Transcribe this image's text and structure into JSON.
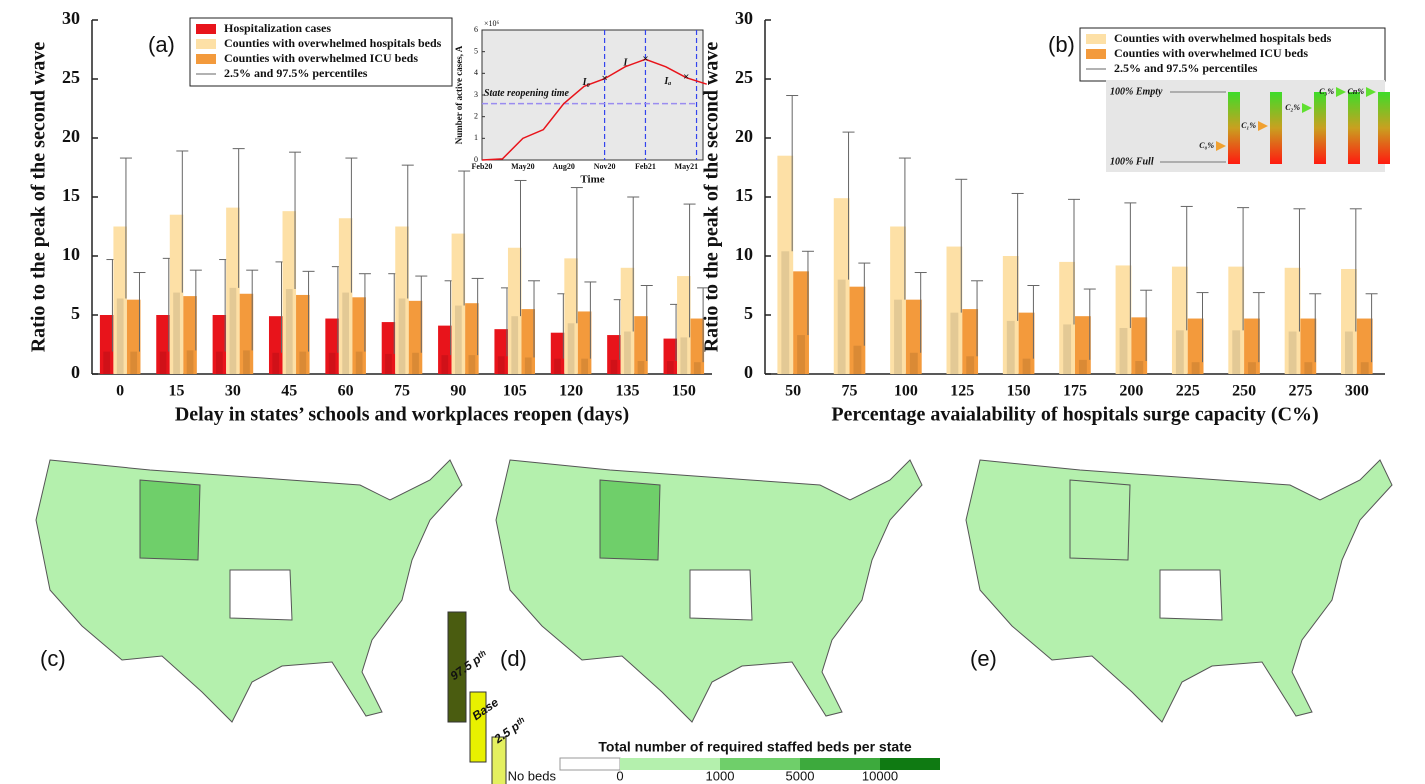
{
  "chart_data": [
    {
      "type": "bar",
      "panel_label": "(a)",
      "xlabel": "Delay in states’ schools and workplaces reopen (days)",
      "ylabel": "Ratio to the peak of the second wave",
      "categories": [
        "0",
        "15",
        "30",
        "45",
        "60",
        "75",
        "90",
        "105",
        "120",
        "135",
        "150"
      ],
      "ylim": [
        0,
        30
      ],
      "yticks": [
        0,
        5,
        10,
        15,
        20,
        25,
        30
      ],
      "errorbar_label": "2.5% and 97.5% percentiles",
      "series": [
        {
          "name": "Hospitalization cases",
          "color": "#e8141b",
          "values": [
            5.0,
            5.0,
            5.0,
            4.9,
            4.7,
            4.4,
            4.1,
            3.8,
            3.5,
            3.3,
            3.0
          ],
          "lower": [
            1.9,
            1.9,
            1.9,
            1.8,
            1.8,
            1.7,
            1.6,
            1.5,
            1.3,
            1.2,
            1.1
          ],
          "upper": [
            9.7,
            9.8,
            9.7,
            9.5,
            9.1,
            8.5,
            7.9,
            7.3,
            6.8,
            6.3,
            5.9
          ]
        },
        {
          "name": "Counties with overwhelmed hospitals beds",
          "color": "#fde0a6",
          "values": [
            12.5,
            13.5,
            14.1,
            13.8,
            13.2,
            12.5,
            11.9,
            10.7,
            9.8,
            9.0,
            8.3
          ],
          "lower": [
            6.4,
            6.9,
            7.3,
            7.2,
            6.9,
            6.4,
            5.8,
            4.9,
            4.3,
            3.6,
            3.1
          ],
          "upper": [
            18.3,
            18.9,
            19.1,
            18.8,
            18.3,
            17.7,
            17.2,
            16.4,
            15.8,
            15.0,
            14.4
          ]
        },
        {
          "name": "Counties with overwhelmed ICU beds",
          "color": "#f39a3c",
          "values": [
            6.3,
            6.6,
            6.8,
            6.7,
            6.5,
            6.2,
            6.0,
            5.5,
            5.3,
            4.9,
            4.7
          ],
          "lower": [
            1.9,
            2.0,
            2.0,
            1.9,
            1.9,
            1.8,
            1.6,
            1.4,
            1.3,
            1.1,
            1.0
          ],
          "upper": [
            8.6,
            8.8,
            8.8,
            8.7,
            8.5,
            8.3,
            8.1,
            7.9,
            7.8,
            7.5,
            7.3
          ]
        }
      ]
    },
    {
      "type": "line",
      "xlabel": "Time",
      "ylabel": "Number of active cases, A",
      "multiplier": "×10⁶",
      "categories": [
        "Feb20",
        null,
        "May20",
        null,
        "Aug20",
        null,
        "Nov20",
        null,
        "Feb21",
        null,
        "May21",
        null
      ],
      "values": [
        0,
        0.05,
        1.0,
        1.4,
        2.6,
        3.4,
        3.75,
        4.3,
        4.65,
        4.3,
        3.8,
        3.5
      ],
      "color": "#e8141b",
      "ylim": [
        0,
        6
      ],
      "yticks": [
        0,
        1,
        2,
        3,
        4,
        5,
        6
      ],
      "annotations": [
        "I₀",
        "I",
        "Iₐ",
        "State reopening time"
      ]
    },
    {
      "type": "bar",
      "panel_label": "(b)",
      "xlabel": "Percentage avaialability of hospitals surge capacity (C%)",
      "ylabel": "Ratio to the peak of the second wave",
      "categories": [
        "50",
        "75",
        "100",
        "125",
        "150",
        "175",
        "200",
        "225",
        "250",
        "275",
        "300"
      ],
      "ylim": [
        0,
        30
      ],
      "yticks": [
        0,
        5,
        10,
        15,
        20,
        25,
        30
      ],
      "errorbar_label": "2.5% and 97.5% percentiles",
      "series": [
        {
          "name": "Counties with overwhelmed hospitals beds",
          "color": "#fde0a6",
          "values": [
            18.5,
            14.9,
            12.5,
            10.8,
            10.0,
            9.5,
            9.2,
            9.1,
            9.1,
            9.0,
            8.9
          ],
          "lower": [
            10.4,
            8.0,
            6.3,
            5.2,
            4.5,
            4.2,
            3.9,
            3.7,
            3.7,
            3.6,
            3.6
          ],
          "upper": [
            23.6,
            20.5,
            18.3,
            16.5,
            15.3,
            14.8,
            14.5,
            14.2,
            14.1,
            14.0,
            14.0
          ]
        },
        {
          "name": "Counties with overwhelmed ICU beds",
          "color": "#f39a3c",
          "values": [
            8.7,
            7.4,
            6.3,
            5.5,
            5.2,
            4.9,
            4.8,
            4.7,
            4.7,
            4.7,
            4.7
          ],
          "lower": [
            3.3,
            2.4,
            1.8,
            1.5,
            1.3,
            1.2,
            1.1,
            1.0,
            1.0,
            1.0,
            1.0
          ],
          "upper": [
            10.4,
            9.4,
            8.6,
            7.9,
            7.5,
            7.2,
            7.1,
            6.9,
            6.9,
            6.8,
            6.8
          ]
        }
      ]
    }
  ],
  "diagram": {
    "top": "100% Empty",
    "bottom": "100% Full",
    "markers": [
      "C₀%",
      "C₁%",
      "C₂%",
      "C₃%",
      "Cn%"
    ]
  },
  "maps": {
    "panels": [
      "(c)",
      "(d)",
      "(e)"
    ],
    "bar_legend": [
      "97.5 pᵗʰ",
      "Base",
      "2.5 pᵗʰ"
    ],
    "legend": {
      "title": "Total number of required staffed beds per state",
      "labels": [
        "No beds",
        "0",
        "1000",
        "5000",
        "10000"
      ],
      "colors": [
        "#ffffff",
        "#b4f0ad",
        "#6fcf6a",
        "#3daa3d",
        "#0f7a12"
      ]
    }
  }
}
